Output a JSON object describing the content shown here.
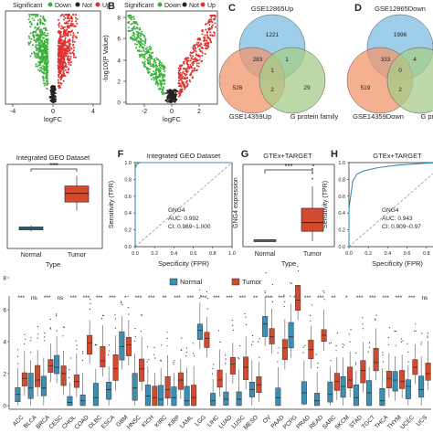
{
  "panels": {
    "A": {
      "letter": "",
      "legend": [
        "Significant",
        "Down",
        "Not",
        "Up"
      ],
      "xlabel": "logFC",
      "xticks": [
        "-4",
        "0",
        "4"
      ]
    },
    "B": {
      "letter": "B",
      "legend": [
        "Significant",
        "Down",
        "Not",
        "Up"
      ],
      "xlabel": "logFC",
      "ylabel": "-log10(P Value)",
      "yticks": [
        "0",
        "2",
        "4",
        "6",
        "8"
      ],
      "xticks": [
        "-2",
        "0",
        "2"
      ]
    },
    "C": {
      "letter": "C",
      "sets": [
        "GSE12865Up",
        "GSE14359Up",
        "G protein family"
      ],
      "counts": {
        "top": "1221",
        "left": "526",
        "right": "29",
        "tl": "283",
        "tr": "1",
        "center": "1",
        "bottom": "2"
      }
    },
    "D": {
      "letter": "D",
      "sets": [
        "GSE12865Down",
        "GSE14359Down",
        "G protein fami"
      ],
      "counts": {
        "top": "1996",
        "left": "519",
        "right": "2",
        "tl": "333",
        "tr": "4",
        "center": "0",
        "bottom": "2"
      }
    },
    "E": {
      "title": "Integrated GEO Dataset",
      "xlabel": "Type",
      "categories": [
        "Normal",
        "Tumor"
      ],
      "sig": "***"
    },
    "F": {
      "letter": "F",
      "title": "Integrated GEO Dataset",
      "xlabel": "Specificity (FPR)",
      "ylabel": "Sensitivity (TPR)",
      "ticks": [
        "0.0",
        "0.2",
        "0.4",
        "0.6",
        "0.8",
        "1.0"
      ],
      "ann": [
        "GNG4",
        "AUC: 0.992",
        "CI: 0.969~1.000"
      ]
    },
    "G": {
      "letter": "G",
      "title": "GTEx+TARGET",
      "xlabel": "Type",
      "ylabel": "GNG4 expression",
      "categories": [
        "Normal",
        "Tumor"
      ],
      "sig": "***"
    },
    "H": {
      "letter": "H",
      "title": "GTEx+TARGET",
      "xlabel": "Specificity (FPR)",
      "ylabel": "Sensitivity (TPR)",
      "ticks": [
        "0.0",
        "0.2",
        "0.4",
        "0.6",
        "0.8",
        "1.0"
      ],
      "ann": [
        "GNG4",
        "AUC: 0.943",
        "CI: 0.909~0.97"
      ]
    },
    "I": {
      "legend": [
        "Normal",
        "Tumor"
      ],
      "yticks": [
        "0",
        "2",
        "4",
        "6",
        "8"
      ]
    }
  },
  "colors": {
    "normal": "#3b8fb3",
    "tumor": "#d24a2f",
    "down": "#3db03d",
    "up": "#e03030",
    "not": "#222222",
    "venn_top": "#8ec6e8",
    "venn_left": "#f2956e",
    "venn_right": "#a6cc8a"
  },
  "chart_data": [
    {
      "type": "scatter",
      "panel": "E",
      "categories": [
        "Normal",
        "Tumor"
      ],
      "box": [
        [
          0.8,
          0.9,
          1.0,
          1.1,
          1.2
        ],
        [
          2.2,
          2.8,
          3.4,
          3.9,
          4.6
        ]
      ],
      "sig": "***"
    },
    {
      "type": "line",
      "panel": "F",
      "xlabel": "Specificity (FPR)",
      "ylabel": "Sensitivity (TPR)",
      "auc": 0.992,
      "xlim": [
        0,
        1
      ],
      "ylim": [
        0,
        1
      ]
    },
    {
      "type": "scatter",
      "panel": "G",
      "categories": [
        "Normal",
        "Tumor"
      ],
      "box": [
        [
          0.0,
          0.05,
          0.1,
          0.12,
          0.15
        ],
        [
          0.0,
          0.9,
          1.7,
          3.0,
          5.0
        ]
      ],
      "sig": "***"
    },
    {
      "type": "line",
      "panel": "H",
      "xlabel": "Specificity (FPR)",
      "ylabel": "Sensitivity (TPR)",
      "auc": 0.943,
      "xlim": [
        0,
        1
      ],
      "ylim": [
        0,
        1
      ]
    },
    {
      "type": "bar",
      "panel": "I",
      "ylim": [
        0,
        8
      ],
      "categories": [
        "ACC",
        "BLCA",
        "BRCA",
        "CESC",
        "CHOL",
        "COAD",
        "DLBC",
        "ESCA",
        "GBM",
        "HNSC",
        "KICH",
        "KIRC",
        "KIRP",
        "LAML",
        "LGG",
        "LIHC",
        "LUAD",
        "LUSC",
        "MESO",
        "OV",
        "PAAD",
        "PCPG",
        "PRAD",
        "READ",
        "SARC",
        "SKCM",
        "STAD",
        "TGCT",
        "THCA",
        "THYM",
        "UCEC",
        "UCS"
      ],
      "sig": [
        "***",
        "ns",
        "***",
        "ns",
        "***",
        "***",
        "***",
        "***",
        "*",
        "***",
        "***",
        "**",
        "***",
        "***",
        "***",
        "***",
        "***",
        "***",
        "**",
        "***",
        "***",
        "*",
        "***",
        "***",
        "**",
        "*",
        "***",
        "***",
        "***",
        "***",
        "***",
        "ns"
      ],
      "series": [
        {
          "name": "Normal",
          "values": [
            0.7,
            1.1,
            1.1,
            2.4,
            0.2,
            0.3,
            0.5,
            1.0,
            3.7,
            1.1,
            0.6,
            0.4,
            0.5,
            0.3,
            4.7,
            0.3,
            0.4,
            0.4,
            1.0,
            5.1,
            0.5,
            4.3,
            0.8,
            0.3,
            0.7,
            1.2,
            0.5,
            0.8,
            0.3,
            1.6,
            1.2,
            1.0
          ]
        },
        {
          "name": "Tumor",
          "values": [
            1.7,
            1.6,
            2.5,
            2.0,
            1.5,
            3.9,
            2.8,
            2.3,
            3.8,
            2.3,
            0.5,
            1.0,
            1.6,
            0.5,
            4.2,
            1.6,
            2.6,
            2.4,
            1.3,
            4.3,
            3.6,
            6.6,
            3.5,
            4.4,
            1.5,
            1.6,
            2.2,
            2.7,
            1.7,
            1.5,
            2.4,
            2.0
          ]
        }
      ]
    }
  ]
}
